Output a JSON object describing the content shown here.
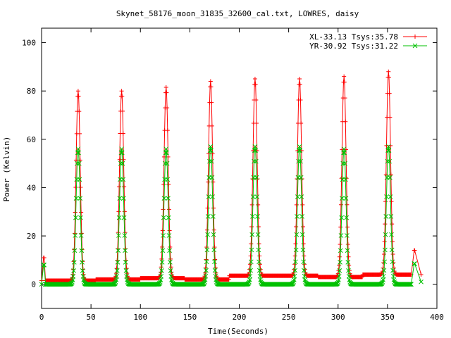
{
  "chart_data": {
    "type": "line",
    "title": "Skynet_58176_moon_31835_32600_cal.txt, LOWRES, daisy",
    "xlabel": "Time(Seconds)",
    "ylabel": "Power (Kelvin)",
    "xlim": [
      0,
      400
    ],
    "ylim": [
      -10,
      106
    ],
    "xticks": [
      0,
      50,
      100,
      150,
      200,
      250,
      300,
      350,
      400
    ],
    "yticks": [
      0,
      20,
      40,
      60,
      80,
      100
    ],
    "grid": false,
    "legend_position": "top-right",
    "series": [
      {
        "name": "XL-33.13 Tsys:35.78",
        "color": "#ff0000",
        "marker": "plus",
        "baseline_segments": [
          [
            0,
            1.5
          ],
          [
            55,
            2
          ],
          [
            100,
            2.5
          ],
          [
            145,
            2
          ],
          [
            190,
            3.5
          ],
          [
            235,
            3.5
          ],
          [
            280,
            3
          ],
          [
            325,
            4
          ],
          [
            360,
            4
          ]
        ],
        "peaks": [
          {
            "x": 37,
            "y": 80
          },
          {
            "x": 81,
            "y": 80
          },
          {
            "x": 126,
            "y": 81.5
          },
          {
            "x": 171,
            "y": 84
          },
          {
            "x": 216,
            "y": 85
          },
          {
            "x": 261,
            "y": 85
          },
          {
            "x": 306,
            "y": 86
          },
          {
            "x": 351,
            "y": 88
          }
        ],
        "end_points": [
          {
            "x": 2,
            "y": 11
          },
          {
            "x": 377,
            "y": 14
          },
          {
            "x": 384,
            "y": 4
          }
        ]
      },
      {
        "name": "YR-30.92 Tsys:31.22",
        "color": "#00c000",
        "marker": "cross",
        "baseline_segments": [
          [
            0,
            0
          ],
          [
            55,
            0
          ],
          [
            100,
            0
          ],
          [
            145,
            0
          ],
          [
            190,
            0
          ],
          [
            235,
            0
          ],
          [
            280,
            0
          ],
          [
            325,
            0
          ],
          [
            360,
            0
          ]
        ],
        "peaks": [
          {
            "x": 37,
            "y": 56
          },
          {
            "x": 81,
            "y": 56
          },
          {
            "x": 126,
            "y": 56
          },
          {
            "x": 171,
            "y": 57
          },
          {
            "x": 216,
            "y": 57
          },
          {
            "x": 261,
            "y": 57
          },
          {
            "x": 306,
            "y": 56
          },
          {
            "x": 351,
            "y": 57
          }
        ],
        "end_points": [
          {
            "x": 2,
            "y": 8
          },
          {
            "x": 377,
            "y": 8.5
          },
          {
            "x": 384,
            "y": 1
          }
        ]
      }
    ]
  }
}
